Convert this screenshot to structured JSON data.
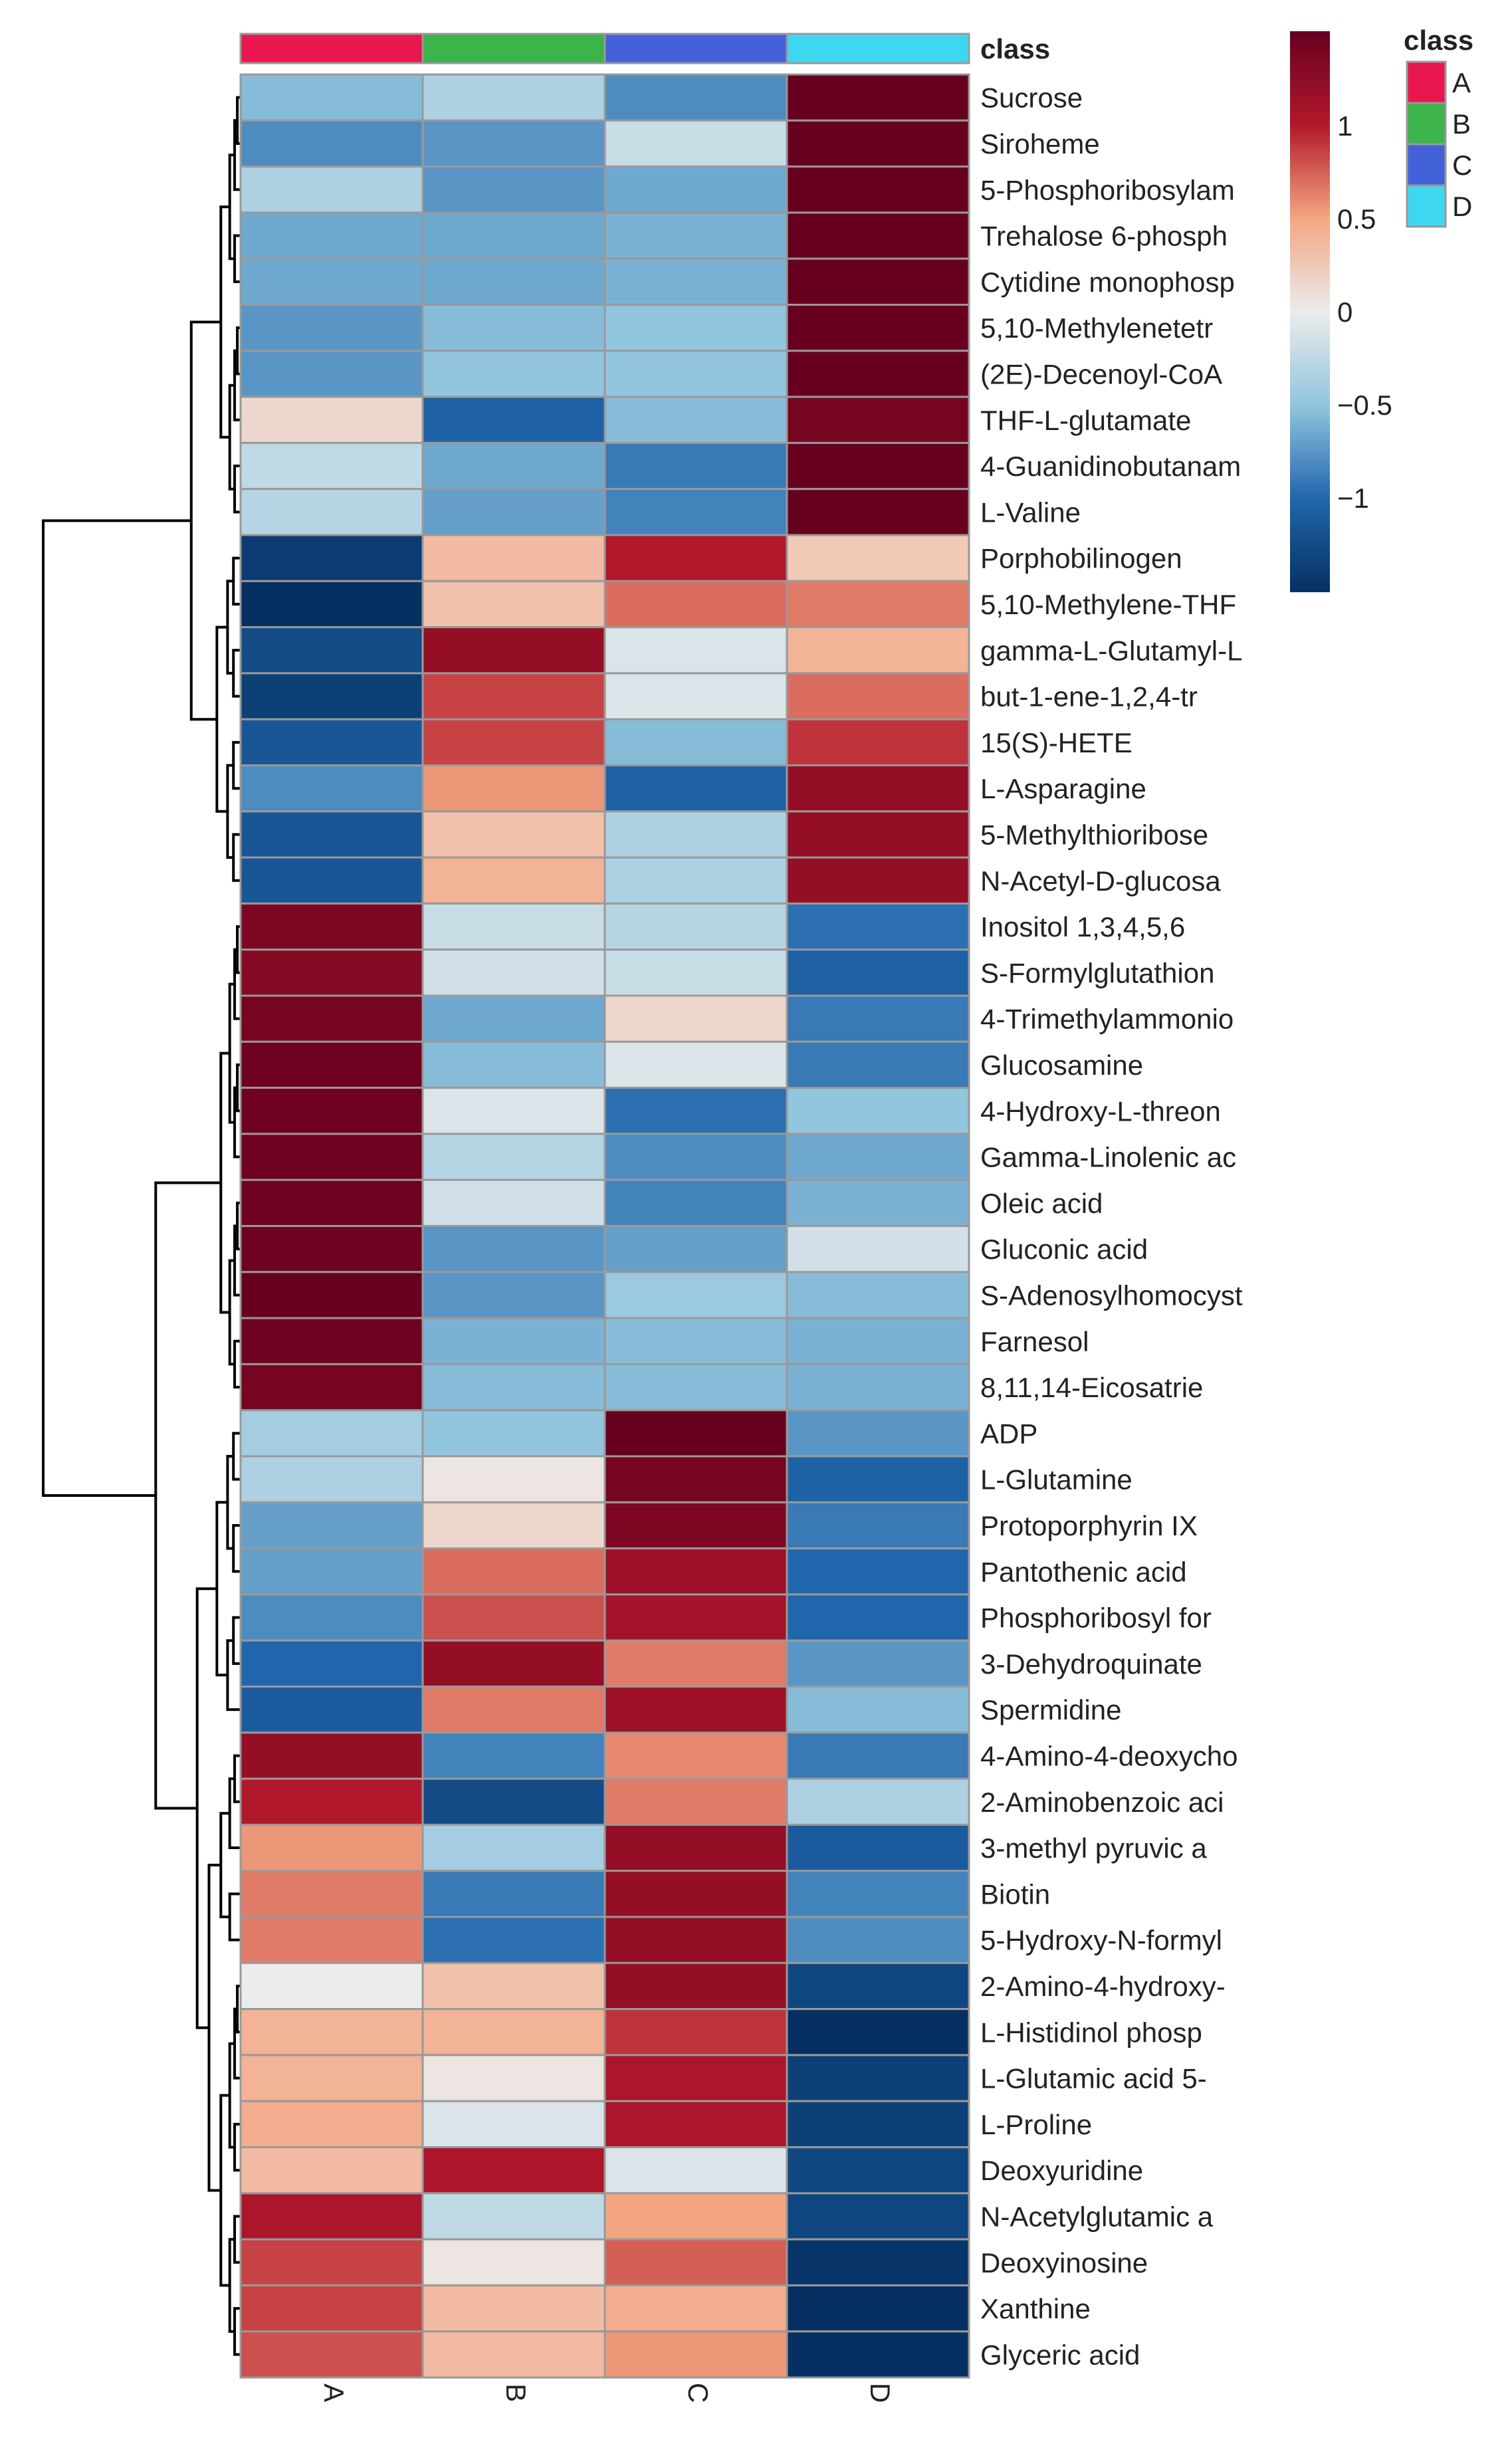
{
  "chart_data": {
    "type": "heatmap",
    "title": "",
    "columns": [
      "A",
      "B",
      "C",
      "D"
    ],
    "class_annotation": {
      "title": "class",
      "header_label": "class",
      "classes": [
        "A",
        "B",
        "C",
        "D"
      ],
      "colors": {
        "A": "#e8174d",
        "B": "#3cb44b",
        "C": "#4361d8",
        "D": "#3ed7f0"
      }
    },
    "colorbar": {
      "ticks": [
        1,
        0.5,
        0,
        -0.5,
        -1
      ],
      "tick_labels": [
        "1",
        "0.5",
        "0",
        "−0.5",
        "−1"
      ],
      "range": [
        -1.5,
        1.5
      ]
    },
    "rows": [
      "Sucrose",
      "Siroheme",
      "5-Phosphoribosylam",
      "Trehalose 6-phosph",
      "Cytidine monophosp",
      "5,10-Methylenetetr",
      "(2E)-Decenoyl-CoA",
      "THF-L-glutamate",
      "4-Guanidinobutanam",
      "L-Valine",
      "Porphobilinogen",
      "5,10-Methylene-THF",
      "gamma-L-Glutamyl-L",
      "but-1-ene-1,2,4-tr",
      "15(S)-HETE",
      "L-Asparagine",
      "5-Methylthioribose",
      "N-Acetyl-D-glucosa",
      "Inositol 1,3,4,5,6",
      "S-Formylglutathion",
      "4-Trimethylammonio",
      "Glucosamine",
      "4-Hydroxy-L-threon",
      "Gamma-Linolenic ac",
      "Oleic acid",
      "Gluconic acid",
      "S-Adenosylhomocyst",
      "Farnesol",
      "8,11,14-Eicosatrie",
      "ADP",
      "L-Glutamine",
      "Protoporphyrin IX",
      "Pantothenic acid",
      "Phosphoribosyl for",
      "3-Dehydroquinate",
      "Spermidine",
      "4-Amino-4-deoxycho",
      "2-Aminobenzoic aci",
      "3-methyl pyruvic a",
      "Biotin",
      "5-Hydroxy-N-formyl",
      "2-Amino-4-hydroxy-",
      "L-Histidinol phosp",
      "L-Glutamic acid 5-",
      "L-Proline",
      "Deoxyuridine",
      "N-Acetylglutamic a",
      "Deoxyinosine",
      "Xanthine",
      "Glyceric acid"
    ],
    "values": [
      [
        -0.55,
        -0.35,
        -0.8,
        1.5
      ],
      [
        -0.8,
        -0.75,
        -0.2,
        1.5
      ],
      [
        -0.35,
        -0.75,
        -0.65,
        1.5
      ],
      [
        -0.65,
        -0.65,
        -0.6,
        1.5
      ],
      [
        -0.65,
        -0.65,
        -0.6,
        1.5
      ],
      [
        -0.75,
        -0.55,
        -0.5,
        1.5
      ],
      [
        -0.75,
        -0.5,
        -0.5,
        1.5
      ],
      [
        0.15,
        -1.05,
        -0.55,
        1.4
      ],
      [
        -0.25,
        -0.65,
        -0.9,
        1.5
      ],
      [
        -0.3,
        -0.7,
        -0.85,
        1.5
      ],
      [
        -1.4,
        0.35,
        1.0,
        0.25
      ],
      [
        -1.5,
        0.3,
        0.7,
        0.65
      ],
      [
        -1.25,
        1.2,
        -0.1,
        0.4
      ],
      [
        -1.35,
        0.85,
        -0.1,
        0.7
      ],
      [
        -1.15,
        0.85,
        -0.55,
        0.9
      ],
      [
        -0.8,
        0.55,
        -1.05,
        1.2
      ],
      [
        -1.15,
        0.3,
        -0.35,
        1.2
      ],
      [
        -1.15,
        0.4,
        -0.35,
        1.2
      ],
      [
        1.35,
        -0.2,
        -0.3,
        -0.95
      ],
      [
        1.3,
        -0.15,
        -0.2,
        -1.05
      ],
      [
        1.4,
        -0.65,
        0.15,
        -0.9
      ],
      [
        1.45,
        -0.55,
        -0.1,
        -0.9
      ],
      [
        1.45,
        -0.1,
        -0.95,
        -0.5
      ],
      [
        1.45,
        -0.3,
        -0.8,
        -0.65
      ],
      [
        1.45,
        -0.15,
        -0.85,
        -0.6
      ],
      [
        1.45,
        -0.75,
        -0.7,
        -0.15
      ],
      [
        1.5,
        -0.75,
        -0.45,
        -0.55
      ],
      [
        1.45,
        -0.6,
        -0.55,
        -0.6
      ],
      [
        1.4,
        -0.55,
        -0.55,
        -0.6
      ],
      [
        -0.4,
        -0.5,
        1.5,
        -0.75
      ],
      [
        -0.35,
        0.05,
        1.4,
        -1.05
      ],
      [
        -0.7,
        0.15,
        1.35,
        -0.9
      ],
      [
        -0.7,
        0.7,
        1.15,
        -1.0
      ],
      [
        -0.8,
        0.8,
        1.1,
        -1.0
      ],
      [
        -1.0,
        1.2,
        0.65,
        -0.75
      ],
      [
        -1.1,
        0.65,
        1.15,
        -0.55
      ],
      [
        1.2,
        -0.85,
        0.6,
        -0.9
      ],
      [
        1.0,
        -1.25,
        0.65,
        -0.35
      ],
      [
        0.55,
        -0.4,
        1.2,
        -1.1
      ],
      [
        0.65,
        -0.9,
        1.2,
        -0.85
      ],
      [
        0.65,
        -0.95,
        1.2,
        -0.8
      ],
      [
        0.0,
        0.3,
        1.2,
        -1.3
      ],
      [
        0.4,
        0.4,
        0.9,
        -1.5
      ],
      [
        0.4,
        0.05,
        1.05,
        -1.35
      ],
      [
        0.45,
        -0.1,
        1.05,
        -1.35
      ],
      [
        0.35,
        1.05,
        -0.1,
        -1.3
      ],
      [
        1.05,
        -0.25,
        0.5,
        -1.3
      ],
      [
        0.85,
        0.05,
        0.75,
        -1.45
      ],
      [
        0.85,
        0.35,
        0.45,
        -1.5
      ],
      [
        0.8,
        0.35,
        0.55,
        -1.5
      ]
    ]
  }
}
